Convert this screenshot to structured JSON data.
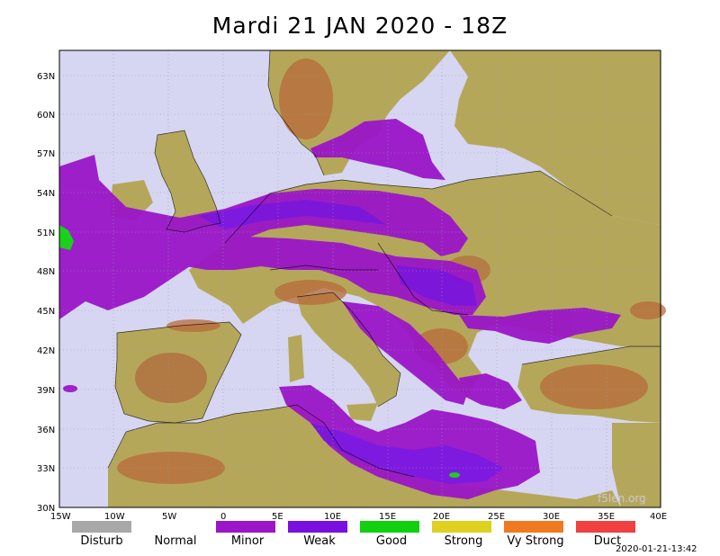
{
  "title": "Mardi 21 JAN 2020 - 18Z",
  "axes": {
    "lat_ticks": [
      "63N",
      "60N",
      "57N",
      "54N",
      "51N",
      "48N",
      "45N",
      "42N",
      "39N",
      "36N",
      "33N",
      "30N"
    ],
    "lon_ticks": [
      "15W",
      "10W",
      "5W",
      "0",
      "5E",
      "10E",
      "15E",
      "20E",
      "25E",
      "30E",
      "35E",
      "40E"
    ]
  },
  "legend": [
    {
      "label": "Disturb",
      "color": "#a8a8a8"
    },
    {
      "label": "Normal",
      "color": null
    },
    {
      "label": "Minor",
      "color": "#9a16c8"
    },
    {
      "label": "Weak",
      "color": "#7a10e0"
    },
    {
      "label": "Good",
      "color": "#10d010"
    },
    {
      "label": "Strong",
      "color": "#e0d020"
    },
    {
      "label": "Vy Strong",
      "color": "#f07a20"
    },
    {
      "label": "Duct",
      "color": "#f04040"
    }
  ],
  "watermark": "f5len.org",
  "timestamp": "2020-01-21-13:42",
  "colors": {
    "sea": "#d6d6f2",
    "land": "#b5a75a",
    "relief": "#b86a3a",
    "minor": "#9a16c8",
    "weak": "#7a10e0",
    "good": "#10d010"
  }
}
